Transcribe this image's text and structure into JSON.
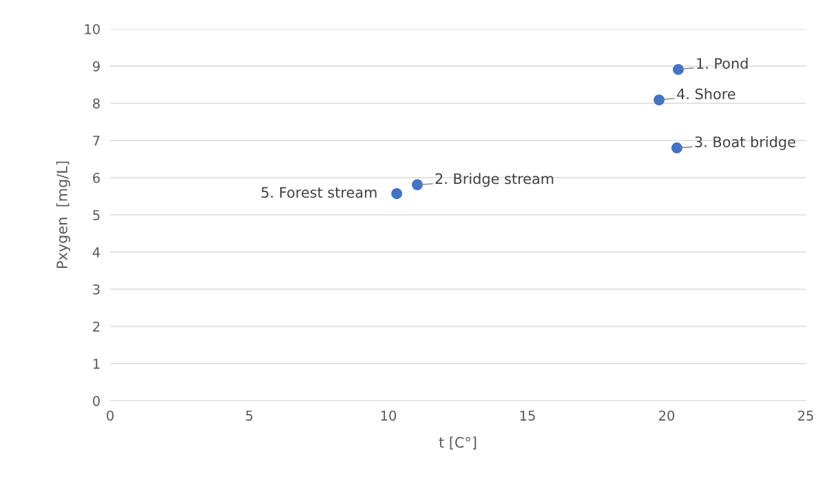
{
  "chart_data": {
    "type": "scatter",
    "xlabel": "t [C°]",
    "ylabel": "Pxygen  [mg/L]",
    "x": [
      20.42,
      11.04,
      20.37,
      19.73,
      10.3
    ],
    "values": [
      8.91,
      5.81,
      6.8,
      8.09,
      5.57
    ],
    "color": "#4472c4",
    "marker": "circle",
    "grid": "y",
    "xlim": [
      0,
      25
    ],
    "xticks": [
      0,
      5,
      10,
      15,
      20,
      25
    ],
    "ylim": [
      0,
      10
    ],
    "yticks": [
      0,
      1,
      2,
      3,
      4,
      5,
      6,
      7,
      8,
      9,
      10
    ],
    "annotations": [
      {
        "text": "1. Pond",
        "x": 20.42,
        "y": 8.91
      },
      {
        "text": "2. Bridge stream",
        "x": 11.04,
        "y": 5.81
      },
      {
        "text": "3. Boat bridge",
        "x": 20.37,
        "y": 6.8
      },
      {
        "text": "4. Shore",
        "x": 19.73,
        "y": 8.09
      },
      {
        "text": "5. Forest stream",
        "x": 10.3,
        "y": 5.57
      }
    ]
  }
}
